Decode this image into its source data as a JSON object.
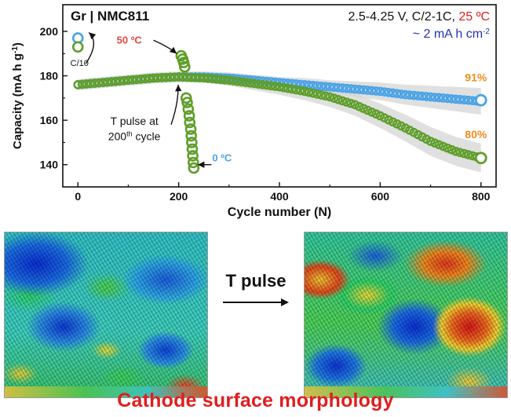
{
  "chart_data": {
    "type": "scatter",
    "title": "Gr | NMC811",
    "condition_prefix": "2.5-4.25 V, C/2-1C, ",
    "condition_temp": "25 ºC",
    "loading": "~ 2 mA h cm",
    "loading_exp": "-2",
    "xlabel": "Cycle number (N)",
    "ylabel_prefix": "Capacity (mA h g",
    "ylabel_exp": "-1",
    "ylabel_suffix": ")",
    "xlim": [
      -30,
      830
    ],
    "ylim": [
      130,
      212
    ],
    "xticks": [
      0,
      200,
      400,
      600,
      800
    ],
    "yticks": [
      140,
      160,
      180,
      200
    ],
    "grid": false,
    "colors": {
      "blue": "#4aa3e6",
      "green": "#5e9e2a",
      "hot_label": "#e34a40",
      "cold_label": "#4aa3e6",
      "retention": "#f08c1e",
      "band": "#d6d6d6"
    },
    "series": [
      {
        "key": "blue",
        "points": [
          [
            0,
            176
          ],
          [
            50,
            177
          ],
          [
            100,
            178
          ],
          [
            150,
            179
          ],
          [
            200,
            179.5
          ],
          [
            250,
            179.5
          ],
          [
            300,
            179
          ],
          [
            350,
            178
          ],
          [
            400,
            177
          ],
          [
            450,
            176
          ],
          [
            500,
            175
          ],
          [
            550,
            174
          ],
          [
            600,
            173
          ],
          [
            650,
            171.5
          ],
          [
            700,
            170.5
          ],
          [
            750,
            169.5
          ],
          [
            800,
            168.5
          ]
        ],
        "band": [
          2.5,
          2.5,
          2.5,
          2.5,
          2.5,
          2.5,
          2.5,
          2.5,
          2.5,
          3,
          3,
          3.5,
          4,
          4.5,
          5,
          5.5,
          6
        ]
      },
      {
        "key": "green",
        "points": [
          [
            0,
            176
          ],
          [
            50,
            177
          ],
          [
            100,
            178
          ],
          [
            150,
            179
          ],
          [
            200,
            179.5
          ],
          [
            250,
            179
          ],
          [
            300,
            178
          ],
          [
            350,
            176.5
          ],
          [
            400,
            175
          ],
          [
            450,
            173
          ],
          [
            500,
            170.5
          ],
          [
            550,
            167
          ],
          [
            600,
            162
          ],
          [
            650,
            156.5
          ],
          [
            700,
            150.5
          ],
          [
            750,
            146
          ],
          [
            800,
            143
          ]
        ],
        "band": [
          2,
          2,
          2,
          2,
          2,
          2,
          2.5,
          3,
          3.5,
          4,
          4.5,
          5,
          5.5,
          6,
          6.5,
          6.5,
          6.5
        ]
      }
    ],
    "initial_points": [
      {
        "x": 0,
        "y": 197,
        "series": "blue"
      },
      {
        "x": 0,
        "y": 193,
        "series": "green"
      }
    ],
    "hot_pulse": [
      [
        205,
        189
      ],
      [
        208,
        187.5
      ],
      [
        210,
        186
      ],
      [
        212,
        184
      ]
    ],
    "cold_pulse": [
      [
        215,
        170
      ],
      [
        217,
        168
      ],
      [
        219,
        165
      ],
      [
        221,
        162
      ],
      [
        222,
        159
      ],
      [
        224,
        156
      ],
      [
        225,
        153
      ],
      [
        226,
        150
      ],
      [
        227,
        147
      ],
      [
        228,
        144
      ],
      [
        229,
        141
      ],
      [
        230,
        138.5
      ]
    ],
    "end_points": [
      {
        "x": 800,
        "y": 169,
        "series": "blue"
      },
      {
        "x": 800,
        "y": 143,
        "series": "green"
      }
    ],
    "annotations": {
      "c10": "C/10",
      "hot": "50 ºC",
      "cold": "0 ºC",
      "pulse_line1": "T pulse at",
      "pulse_line2_pre": "200",
      "pulse_line2_sup": "th",
      "pulse_line2_post": " cycle",
      "retention_blue": "91%",
      "retention_green": "80%"
    }
  },
  "lower_panel": {
    "arrow_label": "T pulse",
    "caption": "Cathode surface morphology"
  }
}
